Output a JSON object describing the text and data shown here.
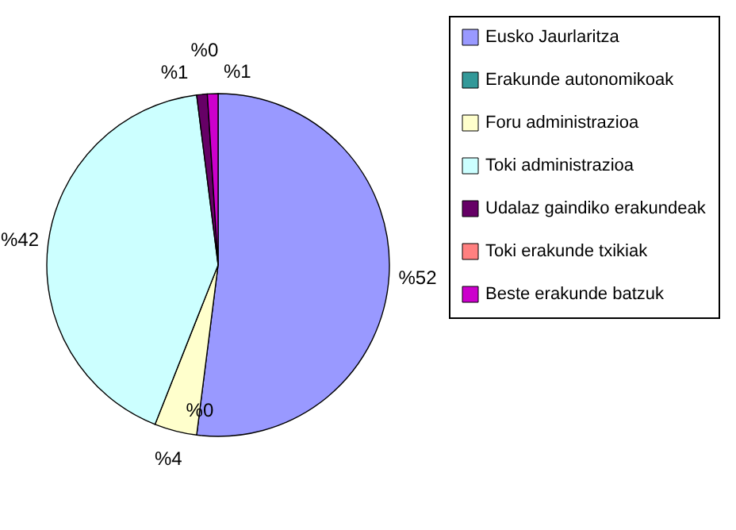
{
  "chart_data": {
    "type": "pie",
    "categories": [
      "Eusko Jaurlaritza",
      "Erakunde autonomikoak",
      "Foru administrazioa",
      "Toki administrazioa",
      "Udalaz gaindiko erakundeak",
      "Toki erakunde txikiak",
      "Beste erakunde batzuk"
    ],
    "values": [
      52,
      0,
      4,
      42,
      1,
      0,
      1
    ],
    "colors": [
      "#9999ff",
      "#339999",
      "#ffffcc",
      "#ccffff",
      "#660066",
      "#ff8080",
      "#cc00cc"
    ],
    "value_labels": [
      "%52",
      "%0",
      "%4",
      "%42",
      "%1",
      "%0",
      "%1"
    ],
    "legend": "right"
  }
}
